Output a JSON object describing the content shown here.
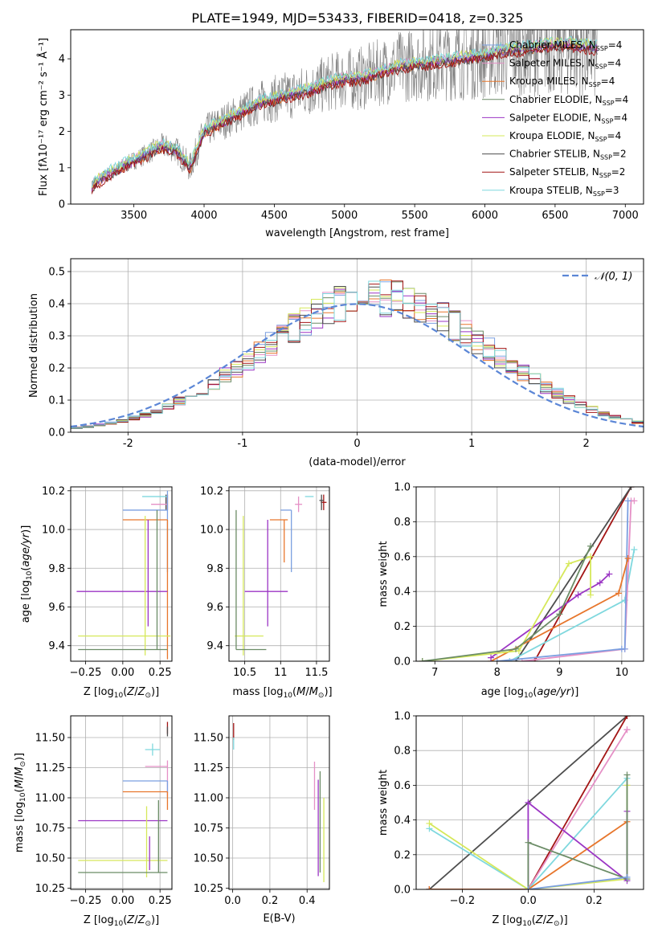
{
  "figure": {
    "title": "PLATE=1949, MJD=53433, FIBERID=0418, z=0.325"
  },
  "colors": {
    "grid": "#b0b0b0",
    "spectrum_data": "#808080",
    "normal_curve": "#5b86d6"
  },
  "chart_data": [
    {
      "id": "spectrum",
      "type": "line",
      "title": "PLATE=1949, MJD=53433, FIBERID=0418, z=0.325",
      "xlabel": "wavelength [Angstrom, rest frame]",
      "ylabel": "Flux [fλ10⁻¹⁷ erg cm⁻² s⁻¹ Å⁻¹]",
      "xlim": [
        3050,
        7130
      ],
      "ylim": [
        0,
        4.8
      ],
      "xticks": [
        3500,
        4000,
        4500,
        5000,
        5500,
        6000,
        6500,
        7000
      ],
      "yticks": [
        0,
        1,
        2,
        3,
        4
      ],
      "grid": false,
      "legend_position": "top-right",
      "continuum": {
        "x": [
          3200,
          3300,
          3400,
          3500,
          3600,
          3700,
          3800,
          3900,
          4000,
          4100,
          4200,
          4300,
          4400,
          4500,
          4600,
          4700,
          4800,
          4900,
          5000,
          5100,
          5200,
          5300,
          5400,
          5500,
          5600,
          5700,
          5800,
          5900,
          6000,
          6100,
          6200,
          6300,
          6400,
          6500,
          6600,
          6700,
          6800
        ],
        "y": [
          0.5,
          0.8,
          1.0,
          1.2,
          1.4,
          1.6,
          1.5,
          1.0,
          2.0,
          2.2,
          2.4,
          2.6,
          2.8,
          2.9,
          3.0,
          3.1,
          3.2,
          3.35,
          3.45,
          3.45,
          3.55,
          3.7,
          3.8,
          3.85,
          3.9,
          3.95,
          4.0,
          4.05,
          4.1,
          4.2,
          4.25,
          4.3,
          4.35,
          4.4,
          4.4,
          4.35,
          4.3
        ]
      },
      "series": [
        {
          "name": "Chabrier MILES, N_SSP=4",
          "label_main": "Chabrier MILES, N",
          "label_sub": "SSP",
          "label_tail": "=4",
          "color": "#7b9fe0",
          "offset": 0.0
        },
        {
          "name": "Salpeter MILES, N_SSP=4",
          "label_main": "Salpeter MILES, N",
          "label_sub": "SSP",
          "label_tail": "=4",
          "color": "#e590c6",
          "offset": 0.06
        },
        {
          "name": "Kroupa MILES, N_SSP=4",
          "label_main": "Kroupa MILES, N",
          "label_sub": "SSP",
          "label_tail": "=4",
          "color": "#e7762c",
          "offset": -0.05
        },
        {
          "name": "Chabrier ELODIE, N_SSP=4",
          "label_main": "Chabrier ELODIE, N",
          "label_sub": "SSP",
          "label_tail": "=4",
          "color": "#6b8c66",
          "offset": 0.03
        },
        {
          "name": "Salpeter ELODIE, N_SSP=4",
          "label_main": "Salpeter ELODIE, N",
          "label_sub": "SSP",
          "label_tail": "=4",
          "color": "#9b35c4",
          "offset": -0.03
        },
        {
          "name": "Kroupa ELODIE, N_SSP=4",
          "label_main": "Kroupa ELODIE, N",
          "label_sub": "SSP",
          "label_tail": "=4",
          "color": "#d6e85a",
          "offset": 0.08
        },
        {
          "name": "Chabrier STELIB, N_SSP=2",
          "label_main": "Chabrier STELIB, N",
          "label_sub": "SSP",
          "label_tail": "=2",
          "color": "#4d4d4d",
          "offset": -0.07
        },
        {
          "name": "Salpeter STELIB, N_SSP=2",
          "label_main": "Salpeter STELIB, N",
          "label_sub": "SSP",
          "label_tail": "=2",
          "color": "#a31515",
          "offset": -0.1
        },
        {
          "name": "Kroupa STELIB, N_SSP=3",
          "label_main": "Kroupa STELIB, N",
          "label_sub": "SSP",
          "label_tail": "=3",
          "color": "#7fd8de",
          "offset": 0.1
        }
      ]
    },
    {
      "id": "residuals",
      "type": "line",
      "xlabel": "(data-model)/error",
      "ylabel": "Normed distribution",
      "xlim": [
        -2.5,
        2.5
      ],
      "ylim": [
        0,
        0.54
      ],
      "xticks": [
        -2,
        -1,
        0,
        1,
        2
      ],
      "yticks": [
        0.0,
        0.1,
        0.2,
        0.3,
        0.4,
        0.5
      ],
      "grid": true,
      "legend_position": "top-right",
      "legend_label": "𝒩(0, 1)",
      "normal": {
        "mean": 0,
        "sigma": 1
      },
      "hist_colors": [
        "#7b9fe0",
        "#e590c6",
        "#e7762c",
        "#6b8c66",
        "#9b35c4",
        "#d6e85a",
        "#4d4d4d",
        "#a31515",
        "#7fd8de"
      ]
    },
    {
      "id": "age_vs_z",
      "type": "scatter",
      "xlabel": "Z [log₁₀(Z/Z⊙)]",
      "ylabel": "age  [log₁₀(age/yr)]",
      "xlim": [
        -0.35,
        0.33
      ],
      "ylim": [
        9.32,
        10.22
      ],
      "xticks": [
        -0.25,
        0.0,
        0.25
      ],
      "xticklabels": [
        "−0.25",
        "0.00",
        "0.25"
      ],
      "yticks": [
        9.4,
        9.6,
        9.8,
        10.0,
        10.2
      ],
      "grid": true,
      "points": [
        {
          "x": 0.3,
          "y": 10.14,
          "xerr": [
            0.0,
            0.0
          ],
          "yerr": [
            0.04,
            0.04
          ],
          "color": "#a31515"
        },
        {
          "x": 0.29,
          "y": 10.15,
          "xerr": [
            0.0,
            0.0
          ],
          "yerr": [
            0.05,
            0.03
          ],
          "color": "#4d4d4d"
        },
        {
          "x": 0.25,
          "y": 10.17,
          "xerr": [
            0.12,
            0.05
          ],
          "yerr": [
            0.0,
            0.0
          ],
          "color": "#7fd8de"
        },
        {
          "x": 0.25,
          "y": 10.13,
          "xerr": [
            0.06,
            0.05
          ],
          "yerr": [
            0.0,
            0.0
          ],
          "color": "#e590c6"
        },
        {
          "x": 0.3,
          "y": 10.1,
          "xerr": [
            0.3,
            0.0
          ],
          "yerr": [
            0.32,
            0.1
          ],
          "color": "#7b9fe0"
        },
        {
          "x": 0.3,
          "y": 10.05,
          "xerr": [
            0.3,
            0.0
          ],
          "yerr": [
            0.72,
            0.0
          ],
          "color": "#e7762c"
        },
        {
          "x": 0.17,
          "y": 9.68,
          "xerr": [
            0.48,
            0.13
          ],
          "yerr": [
            0.18,
            0.37
          ],
          "color": "#9b35c4"
        },
        {
          "x": 0.15,
          "y": 9.45,
          "xerr": [
            0.45,
            0.17
          ],
          "yerr": [
            0.1,
            0.62
          ],
          "color": "#d6e85a"
        },
        {
          "x": 0.23,
          "y": 9.38,
          "xerr": [
            0.53,
            0.07
          ],
          "yerr": [
            0.0,
            0.72
          ],
          "color": "#6b8c66"
        }
      ]
    },
    {
      "id": "age_vs_mass",
      "type": "scatter",
      "xlabel": "mass [log₁₀(M/M⊙)]",
      "ylabel": "",
      "xlim": [
        10.28,
        11.68
      ],
      "ylim": [
        9.32,
        10.22
      ],
      "xticks": [
        10.5,
        11.0,
        11.5
      ],
      "yticks": [
        9.4,
        9.6,
        9.8,
        10.0,
        10.2
      ],
      "grid": true,
      "points": [
        {
          "x": 11.6,
          "y": 10.14,
          "xerr": [
            0.04,
            0.04
          ],
          "yerr": [
            0.04,
            0.04
          ],
          "color": "#a31515"
        },
        {
          "x": 11.57,
          "y": 10.15,
          "xerr": [
            0.03,
            0.03
          ],
          "yerr": [
            0.05,
            0.03
          ],
          "color": "#4d4d4d"
        },
        {
          "x": 11.4,
          "y": 10.17,
          "xerr": [
            0.06,
            0.06
          ],
          "yerr": [
            0.0,
            0.0
          ],
          "color": "#7fd8de"
        },
        {
          "x": 11.25,
          "y": 10.13,
          "xerr": [
            0.05,
            0.05
          ],
          "yerr": [
            0.04,
            0.04
          ],
          "color": "#e590c6"
        },
        {
          "x": 11.15,
          "y": 10.1,
          "xerr": [
            0.15,
            0.0
          ],
          "yerr": [
            0.32,
            0.0
          ],
          "color": "#7b9fe0"
        },
        {
          "x": 11.05,
          "y": 10.05,
          "xerr": [
            0.2,
            0.05
          ],
          "yerr": [
            0.22,
            0.0
          ],
          "color": "#e7762c"
        },
        {
          "x": 10.82,
          "y": 9.68,
          "xerr": [
            0.32,
            0.28
          ],
          "yerr": [
            0.18,
            0.37
          ],
          "color": "#9b35c4"
        },
        {
          "x": 10.48,
          "y": 9.45,
          "xerr": [
            0.12,
            0.28
          ],
          "yerr": [
            0.1,
            0.62
          ],
          "color": "#d6e85a"
        },
        {
          "x": 10.38,
          "y": 9.38,
          "xerr": [
            0.0,
            0.42
          ],
          "yerr": [
            0.0,
            0.72
          ],
          "color": "#6b8c66"
        }
      ]
    },
    {
      "id": "mass_weight_vs_age",
      "type": "line",
      "xlabel": "age  [log₁₀(age/yr)]",
      "ylabel": "mass weight",
      "xlim": [
        6.7,
        10.35
      ],
      "ylim": [
        0,
        1.0
      ],
      "xticks": [
        7,
        8,
        9,
        10
      ],
      "yticks": [
        0.0,
        0.2,
        0.4,
        0.6,
        0.8,
        1.0
      ],
      "grid": true,
      "series": [
        {
          "color": "#a31515",
          "x": [
            8.6,
            10.15
          ],
          "y": [
            0.0,
            1.0
          ]
        },
        {
          "color": "#4d4d4d",
          "x": [
            8.3,
            10.15
          ],
          "y": [
            0.0,
            1.0
          ]
        },
        {
          "color": "#7fd8de",
          "x": [
            8.2,
            10.05,
            10.2
          ],
          "y": [
            0.0,
            0.35,
            0.64
          ]
        },
        {
          "color": "#e590c6",
          "x": [
            8.4,
            10.05,
            10.15,
            10.2
          ],
          "y": [
            0.0,
            0.07,
            0.92,
            0.92
          ]
        },
        {
          "color": "#7b9fe0",
          "x": [
            8.0,
            10.0,
            10.05,
            10.1
          ],
          "y": [
            0.0,
            0.07,
            0.07,
            0.92
          ]
        },
        {
          "color": "#e7762c",
          "x": [
            7.9,
            9.95,
            10.1
          ],
          "y": [
            0.0,
            0.39,
            0.59
          ]
        },
        {
          "color": "#9b35c4",
          "x": [
            7.9,
            9.3,
            9.65,
            9.8
          ],
          "y": [
            0.02,
            0.38,
            0.45,
            0.5
          ]
        },
        {
          "color": "#d6e85a",
          "x": [
            6.8,
            8.35,
            9.15,
            9.5,
            9.5
          ],
          "y": [
            0.0,
            0.06,
            0.56,
            0.6,
            0.38
          ]
        },
        {
          "color": "#6b8c66",
          "x": [
            6.8,
            8.3,
            9.0,
            9.5
          ],
          "y": [
            0.0,
            0.07,
            0.27,
            0.66
          ]
        }
      ]
    },
    {
      "id": "mass_vs_z",
      "type": "scatter",
      "xlabel": "Z [log₁₀(Z/Z⊙)]",
      "ylabel": "mass [log₁₀(M/M⊙)]",
      "xlim": [
        -0.35,
        0.33
      ],
      "ylim": [
        10.24,
        11.68
      ],
      "xticks": [
        -0.25,
        0.0,
        0.25
      ],
      "xticklabels": [
        "−0.25",
        "0.00",
        "0.25"
      ],
      "yticks": [
        10.25,
        10.5,
        10.75,
        11.0,
        11.25,
        11.5
      ],
      "grid": true,
      "points": [
        {
          "x": 0.3,
          "y": 11.58,
          "xerr": [
            0.0,
            0.0
          ],
          "yerr": [
            0.05,
            0.05
          ],
          "color": "#a31515"
        },
        {
          "x": 0.3,
          "y": 11.55,
          "xerr": [
            0.0,
            0.0
          ],
          "yerr": [
            0.04,
            0.04
          ],
          "color": "#4d4d4d"
        },
        {
          "x": 0.2,
          "y": 11.4,
          "xerr": [
            0.05,
            0.05
          ],
          "yerr": [
            0.05,
            0.05
          ],
          "color": "#7fd8de"
        },
        {
          "x": 0.3,
          "y": 11.26,
          "xerr": [
            0.15,
            0.0
          ],
          "yerr": [
            0.25,
            0.05
          ],
          "color": "#e590c6"
        },
        {
          "x": 0.3,
          "y": 11.14,
          "xerr": [
            0.3,
            0.0
          ],
          "yerr": [
            0.1,
            0.0
          ],
          "color": "#7b9fe0"
        },
        {
          "x": 0.3,
          "y": 11.05,
          "xerr": [
            0.3,
            0.0
          ],
          "yerr": [
            0.15,
            0.0
          ],
          "color": "#e7762c"
        },
        {
          "x": 0.3,
          "y": 10.81,
          "xerr": [
            0.6,
            0.0
          ],
          "yerr": [
            0.0,
            0.0
          ],
          "color": "#9b35c4"
        },
        {
          "x": 0.16,
          "y": 10.48,
          "xerr": [
            0.46,
            0.14
          ],
          "yerr": [
            0.14,
            0.45
          ],
          "color": "#d6e85a"
        },
        {
          "x": 0.24,
          "y": 10.38,
          "xerr": [
            0.54,
            0.06
          ],
          "yerr": [
            0.0,
            0.6
          ],
          "color": "#6b8c66"
        },
        {
          "x": 0.18,
          "y": 10.4,
          "xerr": [
            0.0,
            0.0
          ],
          "yerr": [
            0.0,
            0.28
          ],
          "color": "#9b35c4"
        }
      ]
    },
    {
      "id": "mass_vs_ebv",
      "type": "scatter",
      "xlabel": "E(B-V)",
      "ylabel": "",
      "xlim": [
        -0.02,
        0.52
      ],
      "ylim": [
        10.24,
        11.68
      ],
      "xticks": [
        0.0,
        0.2,
        0.4
      ],
      "xticklabels": [
        "0.0",
        "0.2",
        "0.4"
      ],
      "yticks": [
        10.25,
        10.5,
        10.75,
        11.0,
        11.25,
        11.5
      ],
      "grid": true,
      "points": [
        {
          "x": 0.005,
          "y": 11.55,
          "xerr": [
            0.0,
            0.0
          ],
          "yerr": [
            0.07,
            0.07
          ],
          "color": "#a31515"
        },
        {
          "x": 0.005,
          "y": 11.45,
          "xerr": [
            0.0,
            0.0
          ],
          "yerr": [
            0.05,
            0.05
          ],
          "color": "#7fd8de"
        },
        {
          "x": 0.44,
          "y": 11.1,
          "xerr": [
            0.0,
            0.0
          ],
          "yerr": [
            0.2,
            0.2
          ],
          "color": "#e590c6"
        },
        {
          "x": 0.46,
          "y": 10.75,
          "xerr": [
            0.0,
            0.0
          ],
          "yerr": [
            0.4,
            0.4
          ],
          "color": "#9b35c4"
        },
        {
          "x": 0.47,
          "y": 10.8,
          "xerr": [
            0.0,
            0.0
          ],
          "yerr": [
            0.42,
            0.42
          ],
          "color": "#6b8c66"
        },
        {
          "x": 0.49,
          "y": 10.65,
          "xerr": [
            0.0,
            0.0
          ],
          "yerr": [
            0.35,
            0.35
          ],
          "color": "#d6e85a"
        }
      ]
    },
    {
      "id": "mass_weight_vs_z",
      "type": "line",
      "xlabel": "Z [log₁₀(Z/Z⊙)]",
      "ylabel": "mass weight",
      "xlim": [
        -0.34,
        0.35
      ],
      "ylim": [
        0,
        1.0
      ],
      "xticks": [
        -0.2,
        0.0,
        0.2
      ],
      "xticklabels": [
        "−0.2",
        "0.0",
        "0.2"
      ],
      "yticks": [
        0.0,
        0.2,
        0.4,
        0.6,
        0.8,
        1.0
      ],
      "grid": true,
      "series": [
        {
          "color": "#4d4d4d",
          "x": [
            -0.3,
            0.3
          ],
          "y": [
            0.0,
            1.0
          ]
        },
        {
          "color": "#a31515",
          "x": [
            -0.3,
            0.0,
            0.3
          ],
          "y": [
            0.0,
            0.0,
            1.0
          ]
        },
        {
          "color": "#e590c6",
          "x": [
            0.0,
            0.3,
            0.3
          ],
          "y": [
            0.0,
            0.92,
            0.92
          ]
        },
        {
          "color": "#7fd8de",
          "x": [
            -0.3,
            0.0,
            0.3
          ],
          "y": [
            0.35,
            0.0,
            0.64
          ]
        },
        {
          "color": "#d6e85a",
          "x": [
            -0.3,
            0.0,
            0.3,
            0.3
          ],
          "y": [
            0.38,
            0.0,
            0.06,
            0.6
          ]
        },
        {
          "color": "#e7762c",
          "x": [
            -0.3,
            0.0,
            0.3
          ],
          "y": [
            0.0,
            0.0,
            0.39
          ]
        },
        {
          "color": "#9b35c4",
          "x": [
            0.0,
            0.0,
            0.3,
            0.3
          ],
          "y": [
            0.0,
            0.5,
            0.05,
            0.45
          ]
        },
        {
          "color": "#6b8c66",
          "x": [
            0.0,
            0.0,
            0.3,
            0.3
          ],
          "y": [
            0.0,
            0.27,
            0.06,
            0.66
          ]
        },
        {
          "color": "#7b9fe0",
          "x": [
            0.0,
            0.3
          ],
          "y": [
            0.0,
            0.07
          ]
        }
      ]
    }
  ]
}
